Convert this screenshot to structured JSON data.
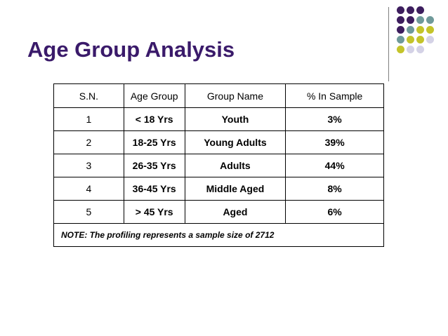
{
  "slide": {
    "title": "Age Group Analysis"
  },
  "table": {
    "headers": [
      "S.N.",
      "Age Group",
      "Group Name",
      "% In Sample"
    ],
    "rows": [
      {
        "sn": "1",
        "age_group": "< 18 Yrs",
        "group_name": "Youth",
        "percent": "3%"
      },
      {
        "sn": "2",
        "age_group": "18-25 Yrs",
        "group_name": "Young Adults",
        "percent": "39%"
      },
      {
        "sn": "3",
        "age_group": "26-35 Yrs",
        "group_name": "Adults",
        "percent": "44%"
      },
      {
        "sn": "4",
        "age_group": "36-45 Yrs",
        "group_name": "Middle Aged",
        "percent": "8%"
      },
      {
        "sn": "5",
        "age_group": "> 45 Yrs",
        "group_name": "Aged",
        "percent": "6%"
      }
    ],
    "note": "NOTE: The profiling represents a sample size of 2712"
  },
  "decoration": {
    "dot_colors": {
      "purple": "#3d1e5e",
      "teal": "#6f9a9a",
      "olive": "#c4c42a",
      "lavender": "#d4d2e6"
    }
  }
}
